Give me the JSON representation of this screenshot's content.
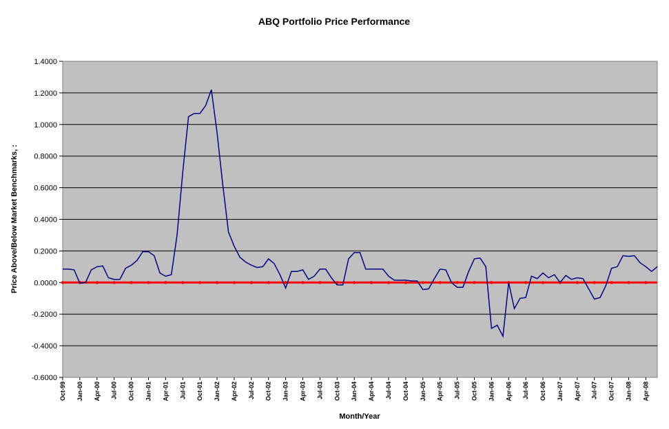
{
  "chart_data": {
    "type": "line",
    "title": "ABQ Portfolio Price Performance",
    "xlabel": "Month/Year",
    "ylabel": "Price Above/Below Market Benchmarks, :",
    "ylim": [
      -0.6,
      1.4
    ],
    "yticks": [
      "1.4000",
      "1.2000",
      "1.0000",
      "0.8000",
      "0.6000",
      "0.4000",
      "0.2000",
      "0.0000",
      "-0.2000",
      "-0.4000",
      "-0.6000"
    ],
    "xticks": [
      "Oct-99",
      "Jan-00",
      "Apr-00",
      "Jul-00",
      "Oct-00",
      "Jan-01",
      "Apr-01",
      "Jul-01",
      "Oct-01",
      "Jan-02",
      "Apr-02",
      "Jul-02",
      "Oct-02",
      "Jan-03",
      "Apr-03",
      "Jul-03",
      "Oct-03",
      "Jan-04",
      "Apr-04",
      "Jul-04",
      "Oct-04",
      "Jan-05",
      "Apr-05",
      "Jul-05",
      "Oct-05",
      "Jan-06",
      "Apr-06",
      "Jul-06",
      "Oct-06",
      "Jan-07",
      "Apr-07",
      "Jul-07",
      "Oct-07",
      "Jan-08",
      "Apr-08"
    ],
    "grid": true,
    "plot_background": "#C0C0C0",
    "series": [
      {
        "color": "#000080",
        "values": [
          0.085,
          0.085,
          0.08,
          -0.005,
          0.0,
          0.08,
          0.1,
          0.105,
          0.03,
          0.02,
          0.02,
          0.09,
          0.11,
          0.14,
          0.195,
          0.195,
          0.17,
          0.06,
          0.04,
          0.05,
          0.3,
          0.7,
          1.05,
          1.07,
          1.07,
          1.12,
          1.22,
          0.95,
          0.62,
          0.32,
          0.23,
          0.16,
          0.13,
          0.11,
          0.095,
          0.1,
          0.15,
          0.12,
          0.05,
          -0.035,
          0.07,
          0.07,
          0.08,
          0.02,
          0.04,
          0.085,
          0.085,
          0.03,
          -0.015,
          -0.015,
          0.15,
          0.19,
          0.19,
          0.085,
          0.085,
          0.085,
          0.085,
          0.04,
          0.015,
          0.015,
          0.015,
          0.01,
          0.01,
          -0.045,
          -0.04,
          0.025,
          0.085,
          0.08,
          0.0,
          -0.03,
          -0.03,
          0.07,
          0.15,
          0.155,
          0.1,
          -0.29,
          -0.27,
          -0.34,
          0.0,
          -0.165,
          -0.1,
          -0.095,
          0.04,
          0.025,
          0.06,
          0.03,
          0.05,
          0.0,
          0.045,
          0.02,
          0.03,
          0.025,
          -0.04,
          -0.105,
          -0.095,
          -0.02,
          0.09,
          0.1,
          0.17,
          0.165,
          0.17,
          0.125,
          0.1,
          0.07,
          0.1
        ]
      },
      {
        "color": "#FF0000",
        "values": [
          0,
          0,
          0,
          0,
          0,
          0,
          0,
          0,
          0,
          0,
          0,
          0,
          0,
          0,
          0,
          0,
          0,
          0,
          0,
          0,
          0,
          0,
          0,
          0,
          0,
          0,
          0,
          0,
          0,
          0,
          0,
          0,
          0,
          0,
          0,
          0,
          0,
          0,
          0,
          0,
          0,
          0,
          0,
          0,
          0,
          0,
          0,
          0,
          0,
          0,
          0,
          0,
          0,
          0,
          0,
          0,
          0,
          0,
          0,
          0,
          0,
          0,
          0,
          0,
          0,
          0,
          0,
          0,
          0,
          0,
          0,
          0,
          0,
          0,
          0,
          0,
          0,
          0,
          0,
          0,
          0,
          0,
          0,
          0,
          0,
          0,
          0,
          0,
          0,
          0,
          0,
          0,
          0,
          0,
          0,
          0,
          0,
          0,
          0,
          0,
          0,
          0,
          0,
          0,
          0
        ]
      }
    ]
  }
}
